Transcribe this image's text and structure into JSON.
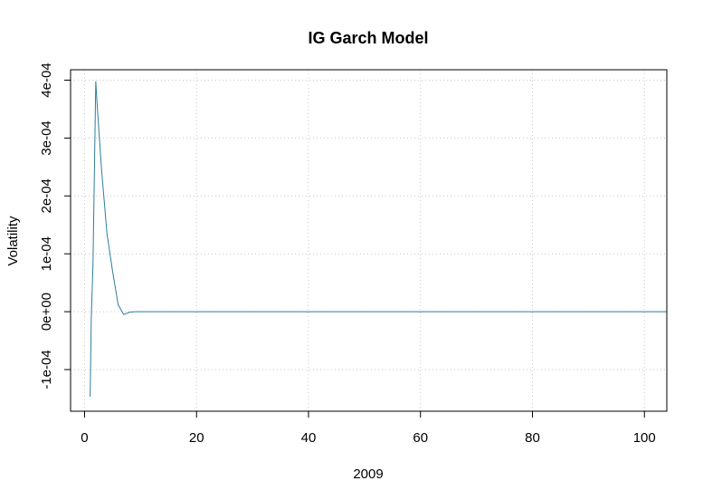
{
  "chart_data": {
    "type": "line",
    "title": "IG Garch Model",
    "xlabel": "2009",
    "ylabel": "Volatility",
    "xlim": [
      -2.5,
      104
    ],
    "ylim": [
      -0.000172,
      0.000418
    ],
    "x_ticks": [
      0,
      20,
      40,
      60,
      80,
      100
    ],
    "x_tick_labels": [
      "0",
      "20",
      "40",
      "60",
      "80",
      "100"
    ],
    "y_ticks": [
      -0.0001,
      0,
      0.0001,
      0.0002,
      0.0003,
      0.0004
    ],
    "y_tick_labels": [
      "-1e-04",
      "0e+00",
      "1e-04",
      "2e-04",
      "3e-04",
      "4e-04"
    ],
    "grid": true,
    "series": [
      {
        "color": "#2e7d9e",
        "x": [
          1,
          1.2,
          1.5,
          2,
          2.3,
          3,
          4,
          5,
          6,
          7,
          8,
          9,
          10,
          15,
          20,
          30,
          40,
          50,
          60,
          70,
          80,
          90,
          100,
          104
        ],
        "y": [
          -0.000147,
          -1e-05,
          8e-05,
          0.000398,
          0.00035,
          0.00025,
          0.000135,
          7e-05,
          1.2e-05,
          -5e-06,
          -1e-06,
          0,
          0,
          0,
          0,
          0,
          0,
          0,
          0,
          0,
          0,
          0,
          0,
          0
        ]
      }
    ]
  }
}
